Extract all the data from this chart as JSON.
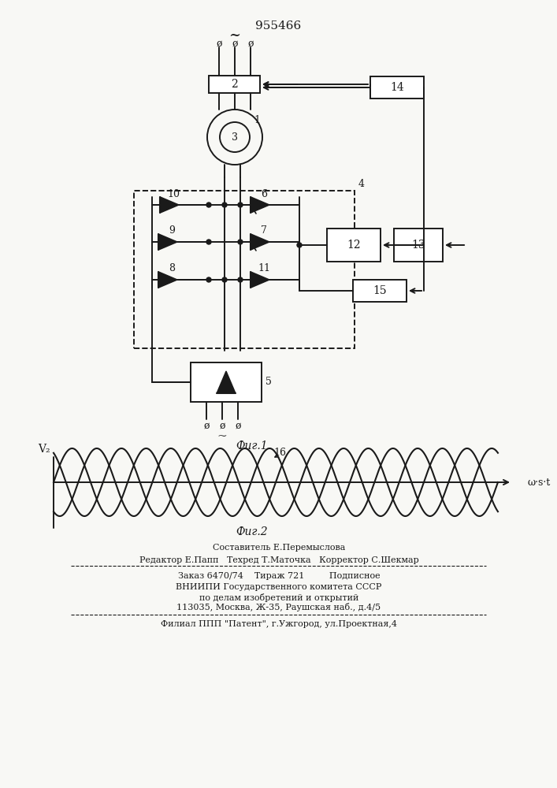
{
  "title": "955466",
  "fig1_label": "Фиг.1",
  "fig2_label": "Фиг.2",
  "y2_label": "V₂",
  "xaxis_label": "ω·s·t",
  "curve_label": "16",
  "text_lines": [
    "Составитель Е.Перемыслова",
    "Редактор Е.Папп   Техред Т.Маточка   Корректор С.Шекмар",
    "Заказ 6470/74    Тираж 721         Подписное",
    "ВНИИПИ Государственного комитета СССР",
    "по делам изобретений и открытий",
    "113035, Москва, Ж-35, Раушская наб., д.4/5",
    "Филиал ППП \"Патент\", г.Ужгород, ул.Проектная,4"
  ],
  "bg_color": "#f8f8f5",
  "lc": "#1a1a1a"
}
